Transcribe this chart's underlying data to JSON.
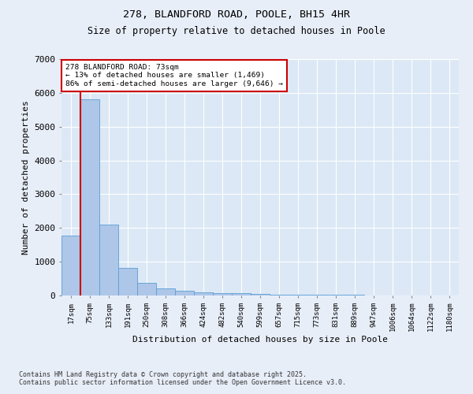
{
  "title_line1": "278, BLANDFORD ROAD, POOLE, BH15 4HR",
  "title_line2": "Size of property relative to detached houses in Poole",
  "xlabel": "Distribution of detached houses by size in Poole",
  "ylabel": "Number of detached properties",
  "categories": [
    "17sqm",
    "75sqm",
    "133sqm",
    "191sqm",
    "250sqm",
    "308sqm",
    "366sqm",
    "424sqm",
    "482sqm",
    "540sqm",
    "599sqm",
    "657sqm",
    "715sqm",
    "773sqm",
    "831sqm",
    "889sqm",
    "947sqm",
    "1006sqm",
    "1064sqm",
    "1122sqm",
    "1180sqm"
  ],
  "values": [
    1780,
    5820,
    2100,
    820,
    380,
    200,
    130,
    100,
    80,
    60,
    50,
    35,
    30,
    20,
    15,
    12,
    8,
    6,
    5,
    4,
    3
  ],
  "bar_color": "#aec6e8",
  "bar_edge_color": "#5a9fd4",
  "vline_color": "#cc0000",
  "vline_pos": 0.5,
  "annotation_title": "278 BLANDFORD ROAD: 73sqm",
  "annotation_line2": "← 13% of detached houses are smaller (1,469)",
  "annotation_line3": "86% of semi-detached houses are larger (9,646) →",
  "annotation_box_color": "#ffffff",
  "annotation_box_edge": "#cc0000",
  "ylim": [
    0,
    7000
  ],
  "yticks": [
    0,
    1000,
    2000,
    3000,
    4000,
    5000,
    6000,
    7000
  ],
  "fig_bg_color": "#e8eef8",
  "plot_bg_color": "#dce8f5",
  "footer_line1": "Contains HM Land Registry data © Crown copyright and database right 2025.",
  "footer_line2": "Contains public sector information licensed under the Open Government Licence v3.0."
}
